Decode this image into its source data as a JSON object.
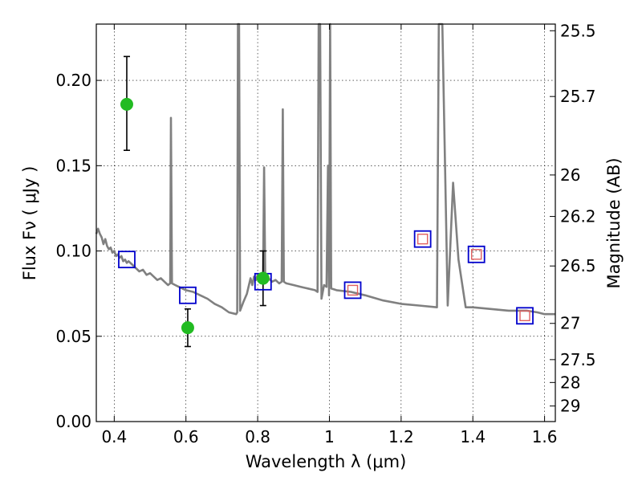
{
  "chart_data": {
    "type": "scatter",
    "title": "",
    "xlabel": "Wavelength  λ (μm)",
    "ylabel": "Flux  Fν  ( μJy )",
    "y2label": "Magnitude (AB)",
    "xlim": [
      0.35,
      1.63
    ],
    "ylim": [
      0.0,
      0.233
    ],
    "grid": true,
    "x_ticks": [
      {
        "value": 0.4,
        "label": "0.4"
      },
      {
        "value": 0.6,
        "label": "0.6"
      },
      {
        "value": 0.8,
        "label": "0.8"
      },
      {
        "value": 1.0,
        "label": "1"
      },
      {
        "value": 1.2,
        "label": "1.2"
      },
      {
        "value": 1.4,
        "label": "1.4"
      },
      {
        "value": 1.6,
        "label": "1.6"
      }
    ],
    "y_ticks": [
      {
        "value": 0.0,
        "label": "0.00"
      },
      {
        "value": 0.05,
        "label": "0.05"
      },
      {
        "value": 0.1,
        "label": "0.10"
      },
      {
        "value": 0.15,
        "label": "0.15"
      },
      {
        "value": 0.2,
        "label": "0.20"
      }
    ],
    "y2_ticks": [
      {
        "value": 25.5,
        "label": "25.5"
      },
      {
        "value": 25.7,
        "label": "25.7"
      },
      {
        "value": 26.0,
        "label": "26"
      },
      {
        "value": 26.2,
        "label": "26.2"
      },
      {
        "value": 26.5,
        "label": "26.5"
      },
      {
        "value": 27.0,
        "label": "27"
      },
      {
        "value": 27.5,
        "label": "27.5"
      },
      {
        "value": 28.0,
        "label": "28"
      },
      {
        "value": 29.0,
        "label": "29"
      }
    ],
    "series": [
      {
        "kind": "model_spectrum",
        "color": "#808080",
        "points": [
          [
            0.35,
            0.11
          ],
          [
            0.355,
            0.113
          ],
          [
            0.36,
            0.11
          ],
          [
            0.365,
            0.108
          ],
          [
            0.37,
            0.104
          ],
          [
            0.375,
            0.107
          ],
          [
            0.38,
            0.103
          ],
          [
            0.385,
            0.101
          ],
          [
            0.39,
            0.102
          ],
          [
            0.395,
            0.099
          ],
          [
            0.4,
            0.1
          ],
          [
            0.405,
            0.097
          ],
          [
            0.41,
            0.098
          ],
          [
            0.415,
            0.096
          ],
          [
            0.42,
            0.097
          ],
          [
            0.425,
            0.094
          ],
          [
            0.43,
            0.095
          ],
          [
            0.435,
            0.093
          ],
          [
            0.44,
            0.094
          ],
          [
            0.45,
            0.092
          ],
          [
            0.46,
            0.09
          ],
          [
            0.47,
            0.088
          ],
          [
            0.48,
            0.089
          ],
          [
            0.49,
            0.086
          ],
          [
            0.5,
            0.087
          ],
          [
            0.51,
            0.085
          ],
          [
            0.52,
            0.083
          ],
          [
            0.53,
            0.084
          ],
          [
            0.54,
            0.082
          ],
          [
            0.55,
            0.08
          ],
          [
            0.556,
            0.081
          ],
          [
            0.558,
            0.178
          ],
          [
            0.561,
            0.081
          ],
          [
            0.57,
            0.08
          ],
          [
            0.58,
            0.079
          ],
          [
            0.6,
            0.077
          ],
          [
            0.62,
            0.076
          ],
          [
            0.64,
            0.074
          ],
          [
            0.66,
            0.072
          ],
          [
            0.68,
            0.069
          ],
          [
            0.7,
            0.067
          ],
          [
            0.72,
            0.064
          ],
          [
            0.74,
            0.063
          ],
          [
            0.743,
            0.064
          ],
          [
            0.745,
            0.233
          ],
          [
            0.748,
            0.233
          ],
          [
            0.751,
            0.065
          ],
          [
            0.76,
            0.07
          ],
          [
            0.77,
            0.075
          ],
          [
            0.78,
            0.084
          ],
          [
            0.785,
            0.08
          ],
          [
            0.79,
            0.085
          ],
          [
            0.795,
            0.083
          ],
          [
            0.8,
            0.086
          ],
          [
            0.81,
            0.084
          ],
          [
            0.815,
            0.085
          ],
          [
            0.818,
            0.149
          ],
          [
            0.821,
            0.085
          ],
          [
            0.83,
            0.084
          ],
          [
            0.84,
            0.082
          ],
          [
            0.85,
            0.083
          ],
          [
            0.86,
            0.081
          ],
          [
            0.867,
            0.082
          ],
          [
            0.87,
            0.183
          ],
          [
            0.873,
            0.082
          ],
          [
            0.88,
            0.081
          ],
          [
            0.9,
            0.08
          ],
          [
            0.92,
            0.079
          ],
          [
            0.94,
            0.078
          ],
          [
            0.96,
            0.077
          ],
          [
            0.967,
            0.076
          ],
          [
            0.97,
            0.233
          ],
          [
            0.974,
            0.233
          ],
          [
            0.978,
            0.072
          ],
          [
            0.985,
            0.08
          ],
          [
            0.992,
            0.079
          ],
          [
            0.996,
            0.15
          ],
          [
            0.999,
            0.074
          ],
          [
            1.002,
            0.233
          ],
          [
            1.005,
            0.078
          ],
          [
            1.02,
            0.077
          ],
          [
            1.06,
            0.076
          ],
          [
            1.1,
            0.074
          ],
          [
            1.15,
            0.071
          ],
          [
            1.2,
            0.069
          ],
          [
            1.25,
            0.068
          ],
          [
            1.3,
            0.067
          ],
          [
            1.305,
            0.233
          ],
          [
            1.315,
            0.233
          ],
          [
            1.33,
            0.068
          ],
          [
            1.345,
            0.14
          ],
          [
            1.36,
            0.095
          ],
          [
            1.38,
            0.067
          ],
          [
            1.4,
            0.067
          ],
          [
            1.45,
            0.066
          ],
          [
            1.5,
            0.065
          ],
          [
            1.55,
            0.065
          ],
          [
            1.58,
            0.064
          ],
          [
            1.6,
            0.063
          ],
          [
            1.63,
            0.063
          ]
        ]
      },
      {
        "kind": "model_photometry",
        "marker": "open-square",
        "color": "#0000cc",
        "x": [
          0.435,
          0.605,
          0.815,
          1.065,
          1.26,
          1.41,
          1.545
        ],
        "y": [
          0.095,
          0.074,
          0.082,
          0.077,
          0.107,
          0.098,
          0.062
        ]
      },
      {
        "kind": "observed_photometry",
        "marker": "open-square",
        "color": "#e06060",
        "x": [
          1.065,
          1.26,
          1.41,
          1.545
        ],
        "y": [
          0.077,
          0.107,
          0.098,
          0.062
        ]
      },
      {
        "kind": "observed_photometry",
        "marker": "filled-circle",
        "color": "#22bb22",
        "x": [
          0.435,
          0.605,
          0.815
        ],
        "y": [
          0.186,
          0.055,
          0.084
        ],
        "yerr_low": [
          0.027,
          0.011,
          0.016
        ],
        "yerr_high": [
          0.028,
          0.011,
          0.016
        ]
      }
    ]
  }
}
